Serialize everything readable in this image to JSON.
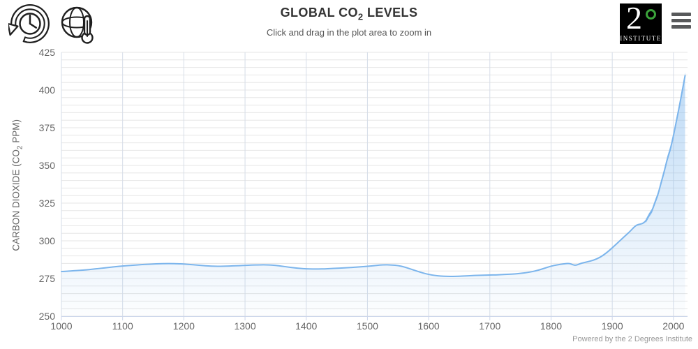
{
  "header": {
    "title": {
      "pre": "GLOBAL CO",
      "sub": "2",
      "post": " LEVELS"
    },
    "subtitle": "Click and drag in the plot area to zoom in",
    "ylabel": {
      "pre": "CARBON DIOXIDE (CO",
      "sub": "2",
      "post": " PPM)"
    },
    "logo": {
      "number": "2",
      "institute": "INSTITUTE",
      "degree_color": "#3aa23a"
    },
    "icons": [
      "history-clock-icon",
      "globe-thermometer-icon",
      "hamburger-menu-icon"
    ]
  },
  "footer": {
    "credit": "Powered by the 2 Degrees Institute"
  },
  "chart_data": {
    "type": "area",
    "title": "GLOBAL CO2 LEVELS",
    "subtitle": "Click and drag in the plot area to zoom in",
    "xlabel": "",
    "ylabel": "CARBON DIOXIDE (CO2 PPM)",
    "xlim": [
      1000,
      2023
    ],
    "ylim": [
      250,
      425
    ],
    "x_ticks": [
      1000,
      1100,
      1200,
      1300,
      1400,
      1500,
      1600,
      1700,
      1800,
      1900,
      2000
    ],
    "y_ticks": [
      250,
      275,
      300,
      325,
      350,
      375,
      400,
      425
    ],
    "grid": {
      "y_minor_step": 5,
      "x_step": 100
    },
    "legend": "off",
    "colors": {
      "line": "#7cb5ec",
      "fill_rgb": "124,181,236",
      "fill_top_opacity": 0.5,
      "fill_bottom_opacity": 0.02,
      "h_grid": "#e6e6e6",
      "v_grid": "#d6dde8",
      "axis": "#ccd6eb",
      "tick_label": "#666666"
    },
    "seasonal_band": {
      "from_year": 1955,
      "half_width_ppm_start": 1.2,
      "half_width_ppm_end": 2.0
    },
    "points": [
      [
        1000,
        279.6
      ],
      [
        1010,
        279.9
      ],
      [
        1020,
        280.1
      ],
      [
        1030,
        280.4
      ],
      [
        1040,
        280.7
      ],
      [
        1050,
        281.1
      ],
      [
        1060,
        281.6
      ],
      [
        1070,
        282.0
      ],
      [
        1080,
        282.5
      ],
      [
        1090,
        282.9
      ],
      [
        1100,
        283.3
      ],
      [
        1110,
        283.6
      ],
      [
        1120,
        283.9
      ],
      [
        1130,
        284.2
      ],
      [
        1140,
        284.4
      ],
      [
        1150,
        284.6
      ],
      [
        1160,
        284.8
      ],
      [
        1170,
        284.9
      ],
      [
        1180,
        284.9
      ],
      [
        1190,
        284.8
      ],
      [
        1200,
        284.6
      ],
      [
        1210,
        284.3
      ],
      [
        1220,
        284.0
      ],
      [
        1230,
        283.6
      ],
      [
        1240,
        283.3
      ],
      [
        1250,
        283.1
      ],
      [
        1260,
        283.1
      ],
      [
        1270,
        283.2
      ],
      [
        1280,
        283.4
      ],
      [
        1290,
        283.5
      ],
      [
        1300,
        283.7
      ],
      [
        1310,
        283.9
      ],
      [
        1320,
        284.0
      ],
      [
        1330,
        284.1
      ],
      [
        1340,
        284.0
      ],
      [
        1350,
        283.7
      ],
      [
        1360,
        283.2
      ],
      [
        1370,
        282.6
      ],
      [
        1380,
        282.1
      ],
      [
        1390,
        281.7
      ],
      [
        1400,
        281.4
      ],
      [
        1410,
        281.3
      ],
      [
        1420,
        281.3
      ],
      [
        1430,
        281.4
      ],
      [
        1440,
        281.6
      ],
      [
        1450,
        281.8
      ],
      [
        1460,
        282.0
      ],
      [
        1470,
        282.2
      ],
      [
        1480,
        282.5
      ],
      [
        1490,
        282.8
      ],
      [
        1500,
        283.1
      ],
      [
        1510,
        283.5
      ],
      [
        1520,
        283.9
      ],
      [
        1530,
        284.1
      ],
      [
        1540,
        284.0
      ],
      [
        1550,
        283.6
      ],
      [
        1560,
        282.7
      ],
      [
        1570,
        281.4
      ],
      [
        1580,
        280.0
      ],
      [
        1590,
        278.7
      ],
      [
        1600,
        277.7
      ],
      [
        1610,
        277.0
      ],
      [
        1620,
        276.6
      ],
      [
        1630,
        276.4
      ],
      [
        1640,
        276.4
      ],
      [
        1650,
        276.5
      ],
      [
        1660,
        276.7
      ],
      [
        1670,
        276.9
      ],
      [
        1680,
        277.1
      ],
      [
        1690,
        277.2
      ],
      [
        1700,
        277.3
      ],
      [
        1710,
        277.4
      ],
      [
        1720,
        277.6
      ],
      [
        1730,
        277.8
      ],
      [
        1740,
        278.0
      ],
      [
        1750,
        278.4
      ],
      [
        1760,
        278.9
      ],
      [
        1770,
        279.6
      ],
      [
        1780,
        280.6
      ],
      [
        1790,
        281.9
      ],
      [
        1800,
        283.2
      ],
      [
        1810,
        284.1
      ],
      [
        1820,
        284.7
      ],
      [
        1830,
        285.1
      ],
      [
        1835,
        284.2
      ],
      [
        1840,
        283.7
      ],
      [
        1845,
        284.4
      ],
      [
        1850,
        285.2
      ],
      [
        1860,
        286.1
      ],
      [
        1870,
        287.2
      ],
      [
        1880,
        289.0
      ],
      [
        1890,
        291.8
      ],
      [
        1900,
        295.3
      ],
      [
        1910,
        299.1
      ],
      [
        1920,
        302.9
      ],
      [
        1930,
        306.6
      ],
      [
        1935,
        308.9
      ],
      [
        1940,
        310.5
      ],
      [
        1945,
        311.0
      ],
      [
        1950,
        311.5
      ],
      [
        1955,
        313.2
      ],
      [
        1960,
        316.9
      ],
      [
        1965,
        320.0
      ],
      [
        1970,
        325.7
      ],
      [
        1975,
        331.1
      ],
      [
        1980,
        338.8
      ],
      [
        1985,
        346.1
      ],
      [
        1990,
        354.4
      ],
      [
        1995,
        360.9
      ],
      [
        2000,
        369.6
      ],
      [
        2005,
        379.9
      ],
      [
        2010,
        389.9
      ],
      [
        2015,
        400.9
      ],
      [
        2019,
        409.5
      ]
    ]
  }
}
